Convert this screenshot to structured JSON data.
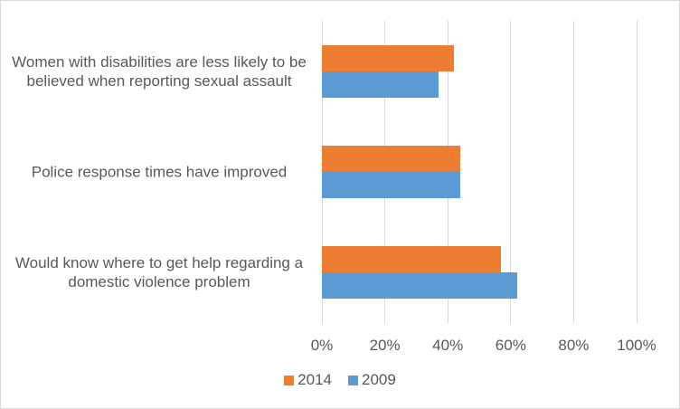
{
  "chart_data": {
    "type": "bar",
    "orientation": "horizontal",
    "categories": [
      "Women with disabilities are less likely to be believed when reporting sexual assault",
      "Police response times have improved",
      "Would know where to get help regarding a domestic violence problem"
    ],
    "series": [
      {
        "name": "2014",
        "color": "#ED7D31",
        "values": [
          42,
          44,
          57
        ]
      },
      {
        "name": "2009",
        "color": "#5B9BD5",
        "values": [
          37,
          44,
          62
        ]
      }
    ],
    "xlim": [
      0,
      100
    ],
    "xticks": [
      {
        "value": 0,
        "label": "0%"
      },
      {
        "value": 20,
        "label": "20%"
      },
      {
        "value": 40,
        "label": "40%"
      },
      {
        "value": 60,
        "label": "60%"
      },
      {
        "value": 80,
        "label": "80%"
      },
      {
        "value": 100,
        "label": "100%"
      }
    ],
    "grid": true,
    "legend": "bottom"
  }
}
